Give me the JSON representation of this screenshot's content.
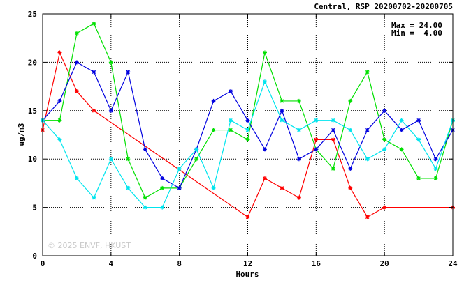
{
  "chart_data": {
    "type": "line",
    "title": "Central, RSP 20200702-20200705",
    "xlabel": "Hours",
    "ylabel": "ug/m3",
    "xlim": [
      0,
      24
    ],
    "ylim": [
      0,
      25
    ],
    "xticks": [
      "0",
      "4",
      "8",
      "12",
      "16",
      "20",
      "24"
    ],
    "yticks": [
      "0",
      "5",
      "10",
      "15",
      "20",
      "25"
    ],
    "grid": true,
    "stats": {
      "max_label": "Max = 24.00",
      "min_label": "Min =  4.00"
    },
    "watermark": "© 2025 ENVF, HKUST",
    "series": [
      {
        "color": "#ff0000",
        "x": [
          0,
          1,
          2,
          3,
          12,
          13,
          14,
          15,
          16,
          17,
          18,
          19,
          20,
          24
        ],
        "y": [
          13,
          21,
          17,
          15,
          4,
          8,
          7,
          6,
          12,
          12,
          7,
          4,
          5,
          5
        ]
      },
      {
        "color": "#00e000",
        "x": [
          0,
          1,
          2,
          3,
          4,
          5,
          6,
          7,
          8,
          9,
          10,
          11,
          12,
          13,
          14,
          15,
          16,
          17,
          18,
          19,
          20,
          21,
          22,
          23,
          24
        ],
        "y": [
          14,
          14,
          23,
          24,
          20,
          10,
          6,
          7,
          7,
          10,
          13,
          13,
          12,
          21,
          16,
          16,
          11,
          9,
          16,
          19,
          12,
          11,
          8,
          8,
          14
        ]
      },
      {
        "color": "#0000e0",
        "x": [
          0,
          1,
          2,
          3,
          4,
          5,
          6,
          7,
          8,
          9,
          10,
          11,
          12,
          13,
          14,
          15,
          16,
          17,
          18,
          19,
          20,
          21,
          22,
          23,
          24
        ],
        "y": [
          14,
          16,
          20,
          19,
          15,
          19,
          11,
          8,
          7,
          11,
          16,
          17,
          14,
          11,
          15,
          10,
          11,
          13,
          9,
          13,
          15,
          13,
          14,
          10,
          13
        ]
      },
      {
        "color": "#00e5ee",
        "x": [
          0,
          1,
          2,
          3,
          4,
          5,
          6,
          7,
          8,
          9,
          10,
          11,
          12,
          13,
          14,
          15,
          16,
          17,
          18,
          19,
          20,
          21,
          22,
          23,
          24
        ],
        "y": [
          14,
          12,
          8,
          6,
          10,
          7,
          5,
          5,
          9,
          11,
          7,
          14,
          13,
          18,
          14,
          13,
          14,
          14,
          13,
          10,
          11,
          14,
          12,
          9,
          14
        ]
      }
    ]
  }
}
